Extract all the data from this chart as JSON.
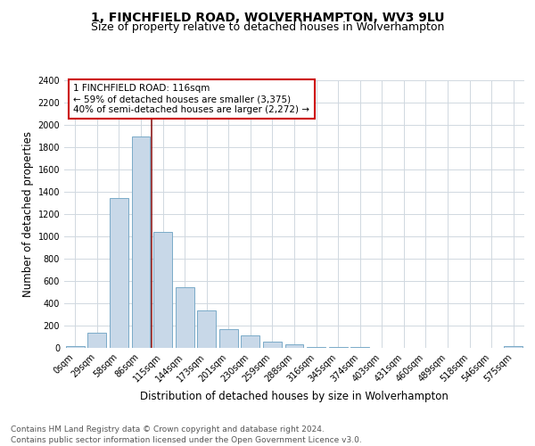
{
  "title1": "1, FINCHFIELD ROAD, WOLVERHAMPTON, WV3 9LU",
  "title2": "Size of property relative to detached houses in Wolverhampton",
  "xlabel": "Distribution of detached houses by size in Wolverhampton",
  "ylabel": "Number of detached properties",
  "categories": [
    "0sqm",
    "29sqm",
    "58sqm",
    "86sqm",
    "115sqm",
    "144sqm",
    "173sqm",
    "201sqm",
    "230sqm",
    "259sqm",
    "288sqm",
    "316sqm",
    "345sqm",
    "374sqm",
    "403sqm",
    "431sqm",
    "460sqm",
    "489sqm",
    "518sqm",
    "546sqm",
    "575sqm"
  ],
  "values": [
    15,
    135,
    1345,
    1895,
    1040,
    545,
    335,
    170,
    110,
    55,
    30,
    10,
    5,
    5,
    2,
    2,
    0,
    0,
    0,
    0,
    15
  ],
  "bar_color": "#c8d8e8",
  "bar_edge_color": "#7aaac8",
  "property_line_index": 4,
  "property_line_color": "#8b1a1a",
  "annotation_text": "1 FINCHFIELD ROAD: 116sqm\n← 59% of detached houses are smaller (3,375)\n40% of semi-detached houses are larger (2,272) →",
  "annotation_box_color": "#ffffff",
  "annotation_box_edge": "#cc0000",
  "ylim": [
    0,
    2400
  ],
  "yticks": [
    0,
    200,
    400,
    600,
    800,
    1000,
    1200,
    1400,
    1600,
    1800,
    2000,
    2200,
    2400
  ],
  "footer1": "Contains HM Land Registry data © Crown copyright and database right 2024.",
  "footer2": "Contains public sector information licensed under the Open Government Licence v3.0.",
  "bg_color": "#ffffff",
  "grid_color": "#d0d8e0",
  "title1_fontsize": 10,
  "title2_fontsize": 9,
  "axis_label_fontsize": 8.5,
  "tick_fontsize": 7,
  "annotation_fontsize": 7.5,
  "footer_fontsize": 6.5
}
